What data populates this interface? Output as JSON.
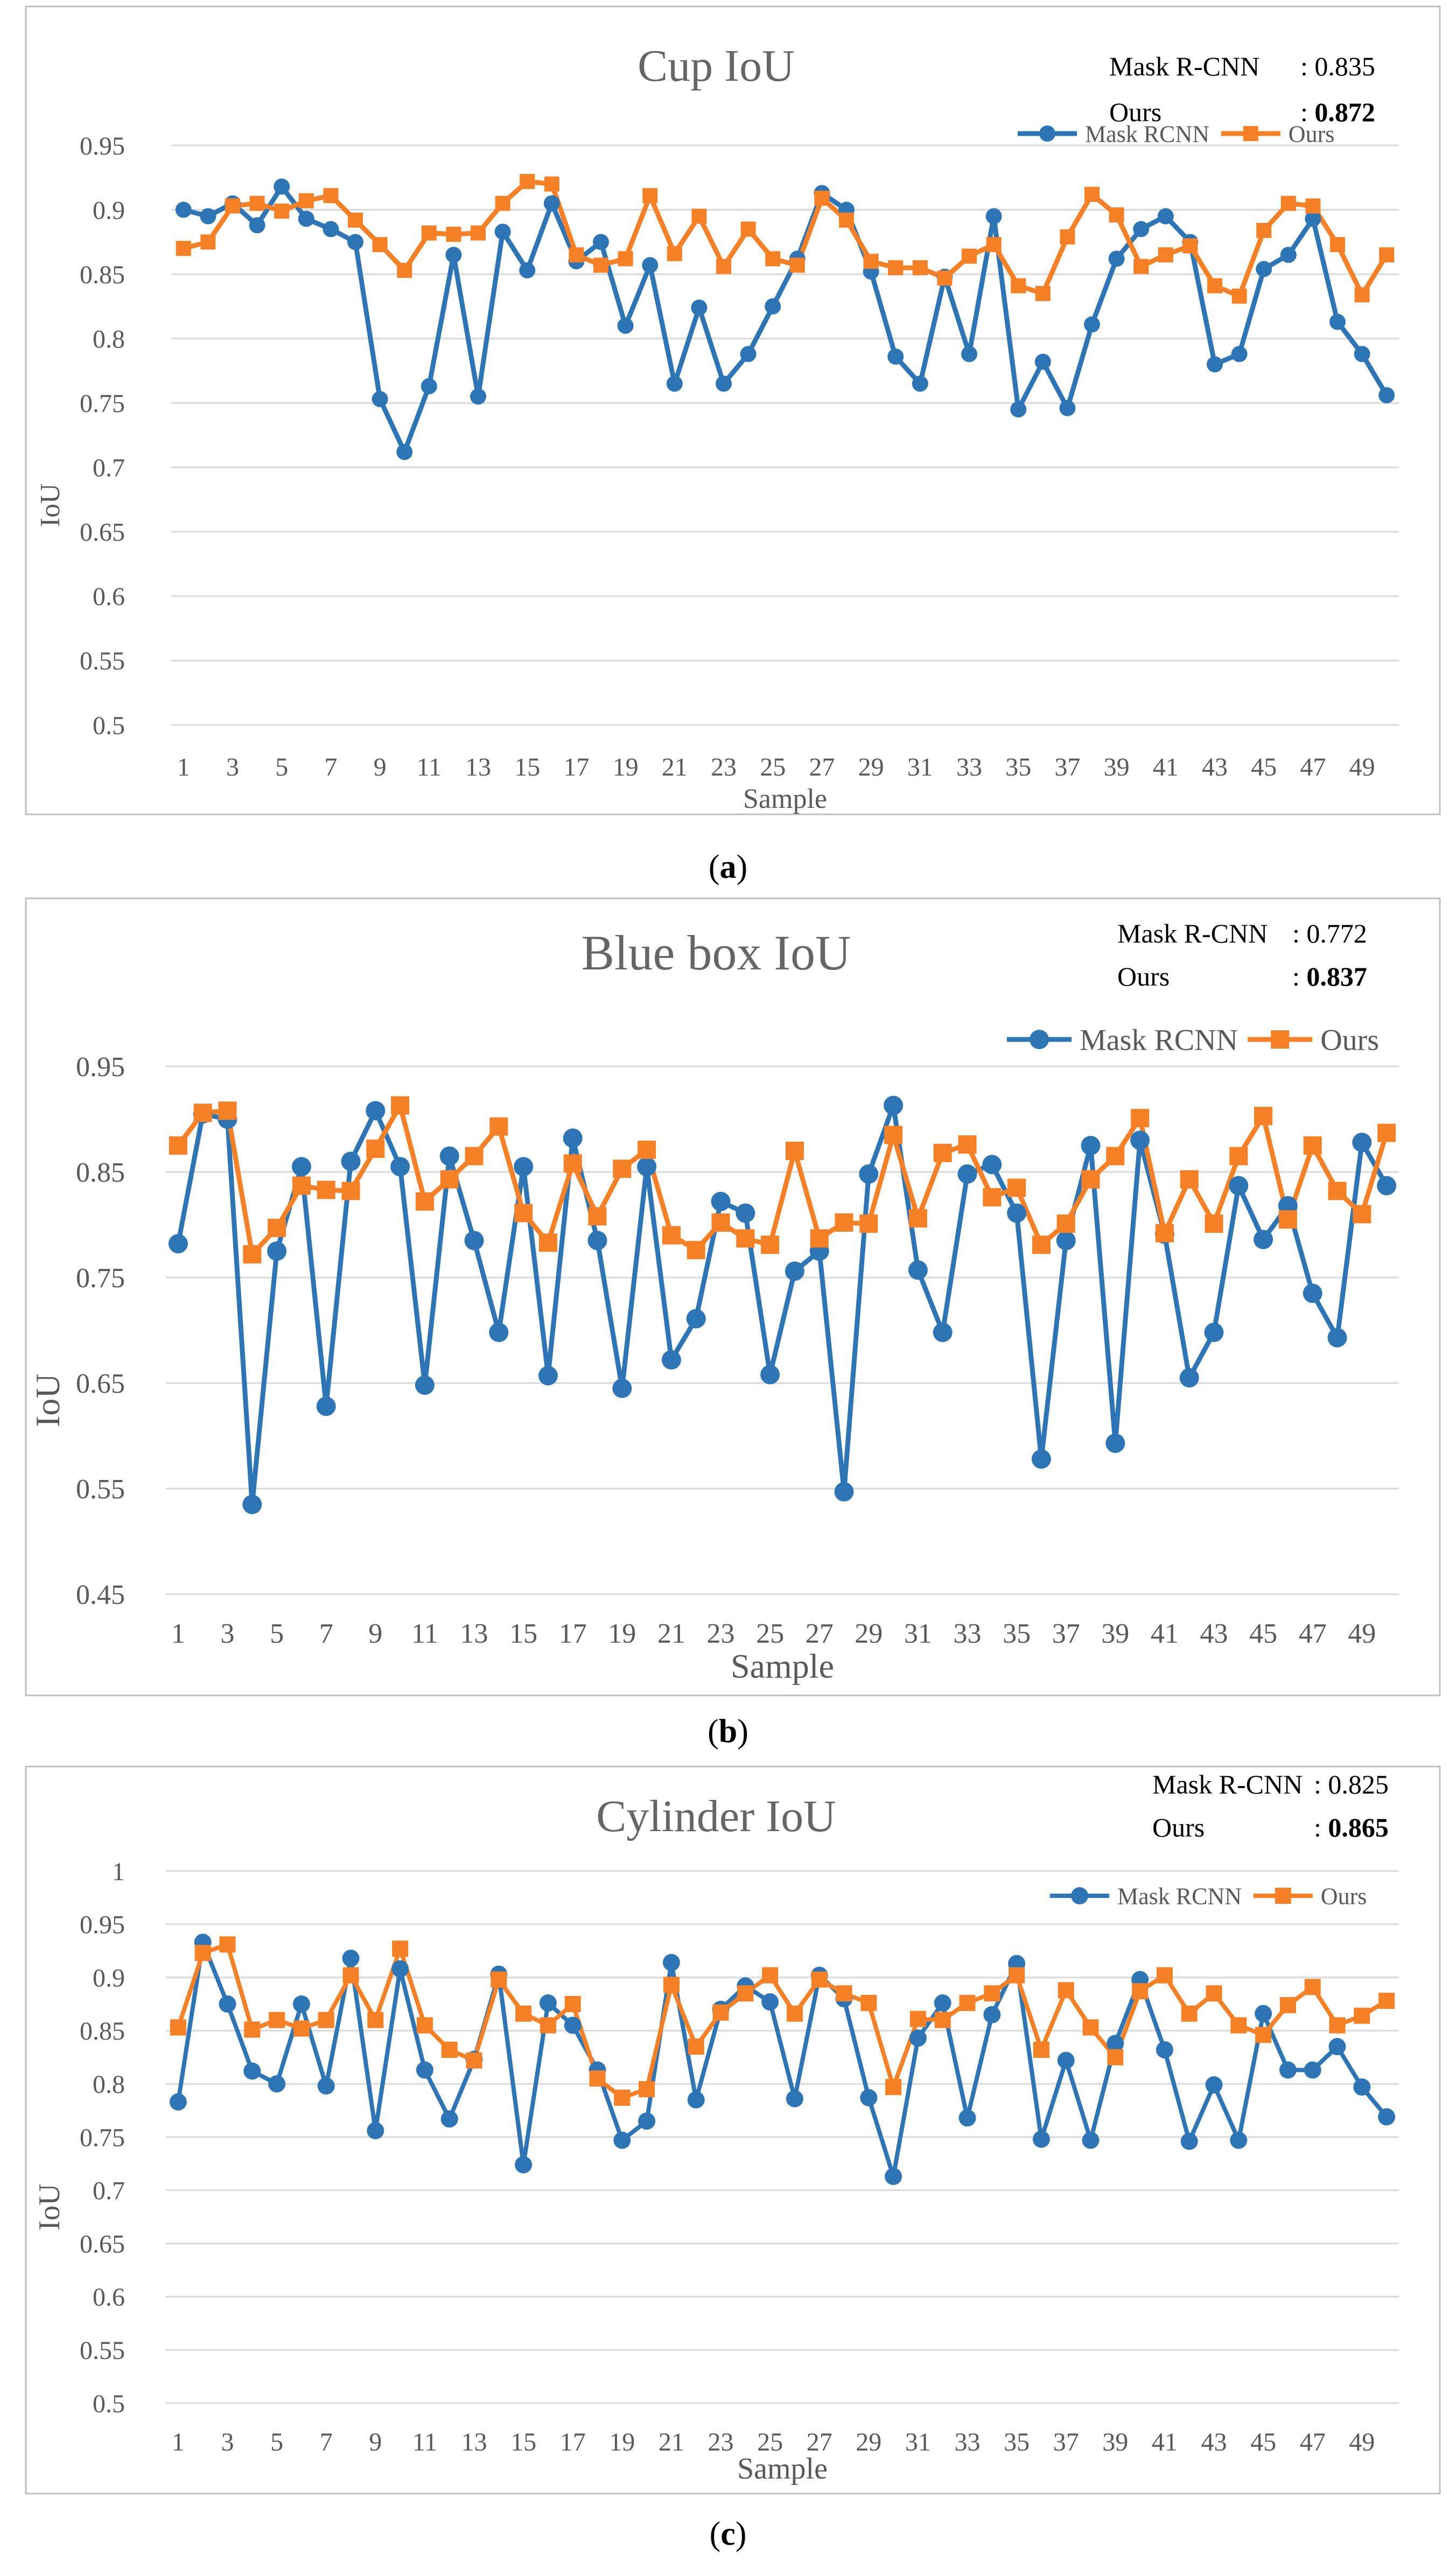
{
  "colors": {
    "mask_rcnn": "#2E75B6",
    "ours": "#F58025",
    "title": "#666666",
    "axis_text": "#595959",
    "grid": "#D9D9D9",
    "border": "#BFBFBF",
    "label_text": "#000000"
  },
  "chart_data": [
    {
      "type": "line",
      "panel_label": "a",
      "title": "Cup IoU",
      "xlabel": "Sample",
      "ylabel": "IoU",
      "ylim": [
        0.5,
        0.95
      ],
      "yticks": [
        "0.5",
        "0.55",
        "0.6",
        "0.65",
        "0.7",
        "0.75",
        "0.8",
        "0.85",
        "0.9",
        "0.95"
      ],
      "marker_mask": "circle",
      "marker_ours": "square",
      "legend": [
        "Mask RCNN",
        "Ours"
      ],
      "summary": {
        "mask_label": "Mask R-CNN",
        "mask_value": "0.835",
        "ours_label": "Ours",
        "ours_value": "0.872"
      },
      "x": [
        1,
        2,
        3,
        4,
        5,
        6,
        7,
        8,
        9,
        10,
        11,
        12,
        13,
        14,
        15,
        16,
        17,
        18,
        19,
        20,
        21,
        22,
        23,
        24,
        25,
        26,
        27,
        28,
        29,
        30,
        31,
        32,
        33,
        34,
        35,
        36,
        37,
        38,
        39,
        40,
        41,
        42,
        43,
        44,
        45,
        46,
        47,
        48,
        49,
        50
      ],
      "series": [
        {
          "name": "Mask RCNN",
          "values": [
            0.9,
            0.895,
            0.905,
            0.888,
            0.918,
            0.893,
            0.885,
            0.875,
            0.753,
            0.712,
            0.763,
            0.865,
            0.755,
            0.883,
            0.853,
            0.905,
            0.86,
            0.875,
            0.81,
            0.857,
            0.765,
            0.824,
            0.765,
            0.788,
            0.825,
            0.862,
            0.913,
            0.9,
            0.852,
            0.786,
            0.765,
            0.848,
            0.788,
            0.895,
            0.745,
            0.782,
            0.746,
            0.811,
            0.862,
            0.885,
            0.895,
            0.875,
            0.78,
            0.788,
            0.854,
            0.865,
            0.893,
            0.813,
            0.788,
            0.756
          ]
        },
        {
          "name": "Ours",
          "values": [
            0.87,
            0.875,
            0.903,
            0.905,
            0.899,
            0.907,
            0.911,
            0.892,
            0.873,
            0.853,
            0.882,
            0.881,
            0.882,
            0.905,
            0.922,
            0.92,
            0.865,
            0.857,
            0.862,
            0.911,
            0.866,
            0.895,
            0.856,
            0.885,
            0.862,
            0.857,
            0.909,
            0.892,
            0.86,
            0.855,
            0.855,
            0.847,
            0.864,
            0.873,
            0.841,
            0.835,
            0.879,
            0.912,
            0.896,
            0.856,
            0.865,
            0.872,
            0.841,
            0.833,
            0.884,
            0.905,
            0.903,
            0.873,
            0.834,
            0.865
          ]
        }
      ]
    },
    {
      "type": "line",
      "panel_label": "b",
      "title": "Blue box IoU",
      "xlabel": "Sample",
      "ylabel": "IoU",
      "ylim": [
        0.45,
        0.95
      ],
      "yticks": [
        "0.45",
        "0.55",
        "0.65",
        "0.75",
        "0.85",
        "0.95"
      ],
      "marker_mask": "circle",
      "marker_ours": "square",
      "legend": [
        "Mask RCNN",
        "Ours"
      ],
      "summary": {
        "mask_label": "Mask R-CNN",
        "mask_value": "0.772",
        "ours_label": "Ours",
        "ours_value": "0.837"
      },
      "x": [
        1,
        2,
        3,
        4,
        5,
        6,
        7,
        8,
        9,
        10,
        11,
        12,
        13,
        14,
        15,
        16,
        17,
        18,
        19,
        20,
        21,
        22,
        23,
        24,
        25,
        26,
        27,
        28,
        29,
        30,
        31,
        32,
        33,
        34,
        35,
        36,
        37,
        38,
        39,
        40,
        41,
        42,
        43,
        44,
        45,
        46,
        47,
        48,
        49,
        50
      ],
      "series": [
        {
          "name": "Mask RCNN",
          "values": [
            0.782,
            0.905,
            0.9,
            0.535,
            0.775,
            0.855,
            0.628,
            0.86,
            0.908,
            0.855,
            0.648,
            0.865,
            0.785,
            0.698,
            0.855,
            0.657,
            0.882,
            0.785,
            0.645,
            0.855,
            0.672,
            0.711,
            0.822,
            0.811,
            0.658,
            0.756,
            0.775,
            0.547,
            0.848,
            0.913,
            0.757,
            0.698,
            0.848,
            0.857,
            0.811,
            0.578,
            0.785,
            0.875,
            0.593,
            0.88,
            0.791,
            0.655,
            0.698,
            0.837,
            0.786,
            0.818,
            0.735,
            0.693,
            0.878,
            0.837
          ]
        },
        {
          "name": "Ours",
          "values": [
            0.875,
            0.906,
            0.908,
            0.772,
            0.797,
            0.837,
            0.833,
            0.832,
            0.872,
            0.913,
            0.822,
            0.843,
            0.865,
            0.893,
            0.811,
            0.783,
            0.858,
            0.808,
            0.853,
            0.871,
            0.79,
            0.776,
            0.802,
            0.787,
            0.781,
            0.87,
            0.787,
            0.802,
            0.801,
            0.885,
            0.806,
            0.868,
            0.876,
            0.826,
            0.835,
            0.781,
            0.801,
            0.843,
            0.865,
            0.901,
            0.792,
            0.843,
            0.801,
            0.865,
            0.903,
            0.805,
            0.875,
            0.832,
            0.81,
            0.887
          ]
        }
      ]
    },
    {
      "type": "line",
      "panel_label": "c",
      "title": "Cylinder IoU",
      "xlabel": "Sample",
      "ylabel": "IoU",
      "ylim": [
        0.5,
        1.0
      ],
      "yticks": [
        "0.5",
        "0.55",
        "0.6",
        "0.65",
        "0.7",
        "0.75",
        "0.8",
        "0.85",
        "0.9",
        "0.95",
        "1"
      ],
      "marker_mask": "circle",
      "marker_ours": "square",
      "legend": [
        "Mask RCNN",
        "Ours"
      ],
      "summary": {
        "mask_label": "Mask R-CNN",
        "mask_value": "0.825",
        "ours_label": "Ours",
        "ours_value": "0.865"
      },
      "x": [
        1,
        2,
        3,
        4,
        5,
        6,
        7,
        8,
        9,
        10,
        11,
        12,
        13,
        14,
        15,
        16,
        17,
        18,
        19,
        20,
        21,
        22,
        23,
        24,
        25,
        26,
        27,
        28,
        29,
        30,
        31,
        32,
        33,
        34,
        35,
        36,
        37,
        38,
        39,
        40,
        41,
        42,
        43,
        44,
        45,
        46,
        47,
        48,
        49,
        50
      ],
      "series": [
        {
          "name": "Mask RCNN",
          "values": [
            0.783,
            0.933,
            0.875,
            0.812,
            0.8,
            0.875,
            0.798,
            0.918,
            0.756,
            0.908,
            0.813,
            0.767,
            0.823,
            0.903,
            0.724,
            0.876,
            0.855,
            0.813,
            0.747,
            0.765,
            0.914,
            0.785,
            0.87,
            0.892,
            0.877,
            0.786,
            0.902,
            0.88,
            0.787,
            0.713,
            0.843,
            0.876,
            0.768,
            0.865,
            0.913,
            0.748,
            0.822,
            0.747,
            0.838,
            0.898,
            0.832,
            0.746,
            0.799,
            0.747,
            0.866,
            0.813,
            0.813,
            0.835,
            0.797,
            0.769
          ]
        },
        {
          "name": "Ours",
          "values": [
            0.853,
            0.923,
            0.931,
            0.851,
            0.86,
            0.852,
            0.86,
            0.902,
            0.86,
            0.927,
            0.855,
            0.832,
            0.822,
            0.898,
            0.866,
            0.855,
            0.875,
            0.805,
            0.787,
            0.795,
            0.893,
            0.835,
            0.867,
            0.885,
            0.902,
            0.866,
            0.898,
            0.885,
            0.876,
            0.797,
            0.861,
            0.86,
            0.876,
            0.885,
            0.902,
            0.832,
            0.888,
            0.853,
            0.825,
            0.887,
            0.902,
            0.866,
            0.885,
            0.855,
            0.846,
            0.874,
            0.891,
            0.855,
            0.864,
            0.878
          ]
        }
      ]
    }
  ]
}
